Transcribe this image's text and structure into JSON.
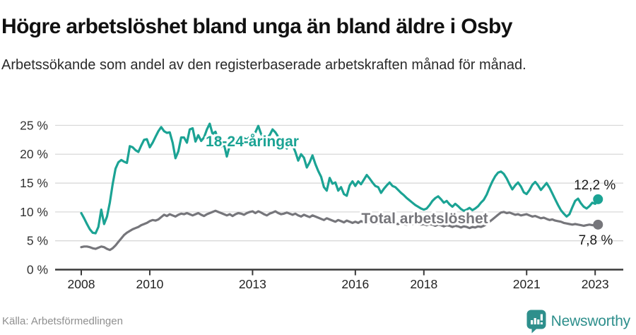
{
  "header": {
    "title": "Högre arbetslöshet bland unga än bland äldre i Osby",
    "subtitle": "Arbetssökande som andel av den registerbaserade arbetskraften månad för månad."
  },
  "footer": {
    "source": "Källa: Arbetsförmedlingen",
    "brand": "Newsworthy"
  },
  "colors": {
    "accent_teal": "#1ba394",
    "line_gray": "#76767b",
    "grid": "#d9d9d9",
    "axis": "#3a3a3a",
    "tick_text": "#222222",
    "end_label_text": "#1a1a1a",
    "brand_teal": "#2e8f8c"
  },
  "chart_data": {
    "type": "line",
    "title": "Högre arbetslöshet bland unga än bland äldre i Osby",
    "subtitle": "Arbetssökande som andel av den registerbaserade arbetskraften månad för månad.",
    "unit": "%",
    "x_start": "2008-01",
    "x_end": "2023-02",
    "frequency": "monthly",
    "ylim": [
      0,
      26
    ],
    "grid": "horizontal",
    "legend": "inline-labels",
    "x_ticks": [
      {
        "year": 2008,
        "label": "2008"
      },
      {
        "year": 2010,
        "label": "2010"
      },
      {
        "year": 2013,
        "label": "2013"
      },
      {
        "year": 2016,
        "label": "2016"
      },
      {
        "year": 2018,
        "label": "2018"
      },
      {
        "year": 2021,
        "label": "2021"
      },
      {
        "year": 2023,
        "label": "2023"
      }
    ],
    "y_ticks": [
      {
        "value": 0,
        "label": "0 %"
      },
      {
        "value": 5,
        "label": "5 %"
      },
      {
        "value": 10,
        "label": "10 %"
      },
      {
        "value": 15,
        "label": "15 %"
      },
      {
        "value": 20,
        "label": "20 %"
      },
      {
        "value": 25,
        "label": "25 %"
      }
    ],
    "series": [
      {
        "name": "18-24-åringar",
        "color": "#1ba394",
        "end_label": "12,2 %",
        "last_value": 12.2,
        "values": [
          9.8,
          8.9,
          7.9,
          7.0,
          6.4,
          6.3,
          7.4,
          10.4,
          7.9,
          9.2,
          11.6,
          14.8,
          17.5,
          18.6,
          19.0,
          18.7,
          18.5,
          21.4,
          21.2,
          20.7,
          20.4,
          21.5,
          22.5,
          22.6,
          21.2,
          22.0,
          23.0,
          24.0,
          24.7,
          24.0,
          23.7,
          23.8,
          22.0,
          19.3,
          20.5,
          22.9,
          22.9,
          22.0,
          24.3,
          24.5,
          22.2,
          23.3,
          22.3,
          22.9,
          24.3,
          25.3,
          23.5,
          23.9,
          22.5,
          21.3,
          21.7,
          19.6,
          21.5,
          22.9,
          22.8,
          22.8,
          22.8,
          22.8,
          22.5,
          23.0,
          23.0,
          23.8,
          24.9,
          23.5,
          22.8,
          22.9,
          23.3,
          24.3,
          23.8,
          23.0,
          22.3,
          21.6,
          21.0,
          22.4,
          21.6,
          20.4,
          18.9,
          20.0,
          19.4,
          17.7,
          18.6,
          19.8,
          18.3,
          17.1,
          16.1,
          14.3,
          13.7,
          15.9,
          14.9,
          15.1,
          13.7,
          14.3,
          13.1,
          12.8,
          14.6,
          15.3,
          14.5,
          15.3,
          14.8,
          15.6,
          16.4,
          15.8,
          15.1,
          14.5,
          14.3,
          13.3,
          14.0,
          14.6,
          15.1,
          14.5,
          14.3,
          13.8,
          13.3,
          12.9,
          12.4,
          12.0,
          11.6,
          11.2,
          10.9,
          10.6,
          10.4,
          10.6,
          11.2,
          11.9,
          12.4,
          12.7,
          12.2,
          11.6,
          11.9,
          11.3,
          10.9,
          11.4,
          11.0,
          10.5,
          10.2,
          10.4,
          10.7,
          10.3,
          10.6,
          11.0,
          11.6,
          12.1,
          13.0,
          14.2,
          15.3,
          16.2,
          16.8,
          17.0,
          16.6,
          15.8,
          14.8,
          13.9,
          14.6,
          15.1,
          14.4,
          13.4,
          13.1,
          13.8,
          14.7,
          15.2,
          14.6,
          13.8,
          14.4,
          15.0,
          14.2,
          13.2,
          12.2,
          11.2,
          10.3,
          9.7,
          9.2,
          9.6,
          10.8,
          11.9,
          12.3,
          11.5,
          10.9,
          10.6,
          11.0,
          11.6,
          11.4,
          12.2
        ]
      },
      {
        "name": "Total arbetslöshet",
        "color": "#76767b",
        "end_label": "7,8 %",
        "last_value": 7.8,
        "values": [
          3.9,
          4.0,
          4.0,
          3.9,
          3.7,
          3.6,
          3.8,
          4.0,
          3.9,
          3.6,
          3.4,
          3.7,
          4.2,
          4.8,
          5.4,
          6.0,
          6.4,
          6.7,
          7.0,
          7.2,
          7.4,
          7.7,
          7.9,
          8.1,
          8.4,
          8.6,
          8.5,
          8.7,
          9.1,
          9.5,
          9.3,
          9.6,
          9.4,
          9.2,
          9.5,
          9.7,
          9.6,
          9.8,
          9.6,
          9.4,
          9.6,
          9.8,
          9.5,
          9.3,
          9.6,
          9.8,
          10.0,
          10.2,
          10.0,
          9.8,
          9.6,
          9.4,
          9.6,
          9.3,
          9.6,
          9.8,
          9.7,
          9.5,
          9.8,
          10.0,
          10.1,
          9.8,
          10.1,
          9.9,
          9.6,
          9.4,
          9.7,
          9.9,
          10.1,
          9.8,
          9.6,
          9.7,
          9.9,
          9.7,
          9.5,
          9.7,
          9.4,
          9.2,
          9.5,
          9.3,
          9.1,
          9.4,
          9.2,
          9.0,
          8.8,
          8.6,
          8.9,
          8.7,
          8.5,
          8.3,
          8.6,
          8.4,
          8.2,
          8.5,
          8.3,
          8.1,
          8.3,
          8.1,
          8.4,
          8.2,
          8.0,
          8.2,
          8.0,
          7.9,
          8.1,
          8.0,
          8.2,
          8.1,
          8.0,
          8.2,
          8.0,
          7.9,
          8.1,
          7.9,
          7.8,
          8.0,
          7.9,
          8.1,
          7.9,
          7.8,
          7.9,
          7.7,
          7.9,
          7.8,
          7.6,
          7.8,
          7.7,
          7.5,
          7.7,
          7.6,
          7.4,
          7.6,
          7.5,
          7.3,
          7.5,
          7.4,
          7.2,
          7.4,
          7.3,
          7.5,
          7.4,
          7.6,
          7.9,
          8.3,
          8.7,
          9.1,
          9.5,
          9.9,
          10.0,
          9.8,
          9.9,
          9.7,
          9.5,
          9.6,
          9.4,
          9.5,
          9.6,
          9.4,
          9.2,
          9.3,
          9.1,
          8.9,
          9.0,
          8.8,
          8.6,
          8.7,
          8.5,
          8.4,
          8.3,
          8.1,
          8.0,
          7.9,
          7.8,
          7.9,
          7.8,
          7.7,
          7.6,
          7.7,
          7.8,
          7.7,
          7.7,
          7.8
        ]
      }
    ]
  }
}
